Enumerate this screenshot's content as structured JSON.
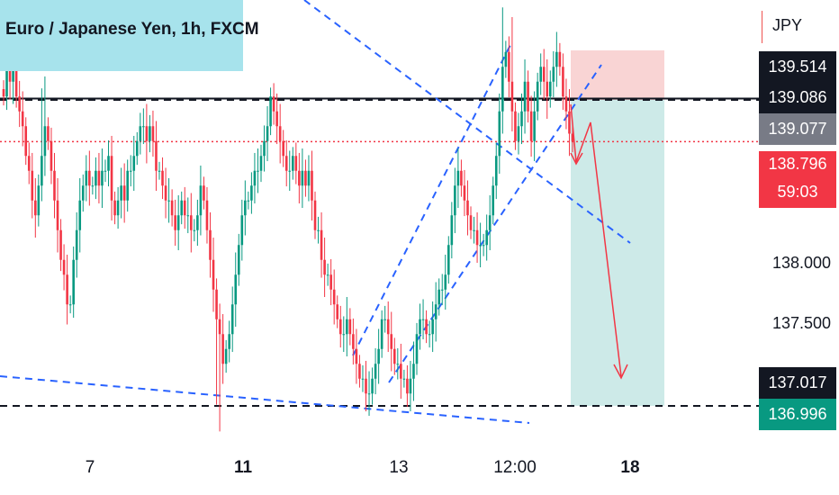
{
  "header": {
    "symbol_title": "Euro / Japanese Yen, 1h, FXCM",
    "currency": "JPY"
  },
  "price_badges": [
    {
      "label": "139.514",
      "bg": "#131722",
      "fg": "#ffffff"
    },
    {
      "label": "139.086",
      "bg": "#131722",
      "fg": "#ffffff"
    },
    {
      "label": "139.077",
      "bg": "#787b86",
      "fg": "#ffffff"
    },
    {
      "label": "138.796",
      "bg": "#f23645",
      "fg": "#ffffff"
    },
    {
      "label": "59:03",
      "bg": "#f23645",
      "fg": "#ffffff"
    },
    {
      "label": "137.017",
      "bg": "#131722",
      "fg": "#ffffff"
    },
    {
      "label": "136.996",
      "bg": "#089981",
      "fg": "#ffffff"
    }
  ],
  "price_scale": [
    "138.000",
    "137.500"
  ],
  "time_scale": [
    {
      "label": "7",
      "bold": false
    },
    {
      "label": "11",
      "bold": true
    },
    {
      "label": "13",
      "bold": false
    },
    {
      "label": "12:00",
      "bold": false
    },
    {
      "label": "18",
      "bold": true
    }
  ],
  "colors": {
    "up": "#089981",
    "down": "#f23645",
    "trendline": "#2962ff",
    "projection": "#f23645",
    "stop_zone": "#f9d4d4",
    "target_zone": "#cdeae8"
  },
  "chart_data": {
    "type": "candlestick",
    "ylim": [
      136.75,
      139.75
    ],
    "x_ticks": [
      "7",
      "11",
      "13",
      "12:00",
      "18"
    ],
    "closes": [
      139.1,
      139.3,
      139.2,
      139.3,
      139.1,
      139.0,
      138.9,
      138.7,
      138.6,
      138.4,
      138.3,
      138.5,
      138.7,
      138.9,
      138.8,
      138.6,
      138.4,
      138.2,
      138.0,
      137.9,
      137.7,
      137.7,
      138.0,
      138.2,
      138.4,
      138.5,
      138.6,
      138.5,
      138.5,
      138.6,
      138.5,
      138.6,
      138.6,
      138.7,
      138.4,
      138.3,
      138.4,
      138.5,
      138.4,
      138.6,
      138.6,
      138.7,
      138.8,
      138.9,
      138.9,
      138.8,
      138.9,
      138.8,
      138.6,
      138.6,
      138.5,
      138.4,
      138.4,
      138.3,
      138.2,
      138.3,
      138.4,
      138.3,
      138.3,
      138.2,
      138.2,
      138.3,
      138.5,
      138.4,
      138.2,
      138.0,
      137.8,
      137.6,
      137.5,
      137.3,
      137.4,
      137.5,
      137.7,
      137.9,
      138.1,
      138.3,
      138.4,
      138.4,
      138.5,
      138.6,
      138.6,
      138.7,
      138.8,
      138.9,
      139.1,
      139.0,
      138.9,
      138.8,
      138.7,
      138.6,
      138.6,
      138.7,
      138.6,
      138.5,
      138.6,
      138.5,
      138.6,
      138.4,
      138.2,
      138.2,
      138.0,
      137.9,
      137.9,
      137.8,
      137.7,
      137.6,
      137.5,
      137.5,
      137.6,
      137.5,
      137.4,
      137.3,
      137.2,
      137.2,
      137.1,
      137.1,
      137.2,
      137.3,
      137.4,
      137.6,
      137.6,
      137.5,
      137.4,
      137.3,
      137.3,
      137.2,
      137.2,
      137.1,
      137.2,
      137.3,
      137.5,
      137.6,
      137.6,
      137.5,
      137.5,
      137.6,
      137.7,
      137.8,
      137.8,
      137.9,
      138.1,
      138.3,
      138.5,
      138.6,
      138.5,
      138.4,
      138.3,
      138.2,
      138.2,
      138.1,
      138.1,
      138.1,
      138.2,
      138.3,
      138.5,
      138.7,
      139.0,
      139.3,
      139.4,
      139.2,
      139.0,
      138.8,
      138.9,
      139.0,
      139.2,
      139.0,
      138.8,
      139.0,
      139.2,
      139.3,
      139.2,
      139.1,
      139.2,
      139.3,
      139.4,
      139.3,
      139.1,
      139.0,
      138.85,
      138.8
    ],
    "levels": {
      "resistance": 139.086,
      "entry": 139.077,
      "current": 138.796,
      "target": 137.017
    }
  }
}
